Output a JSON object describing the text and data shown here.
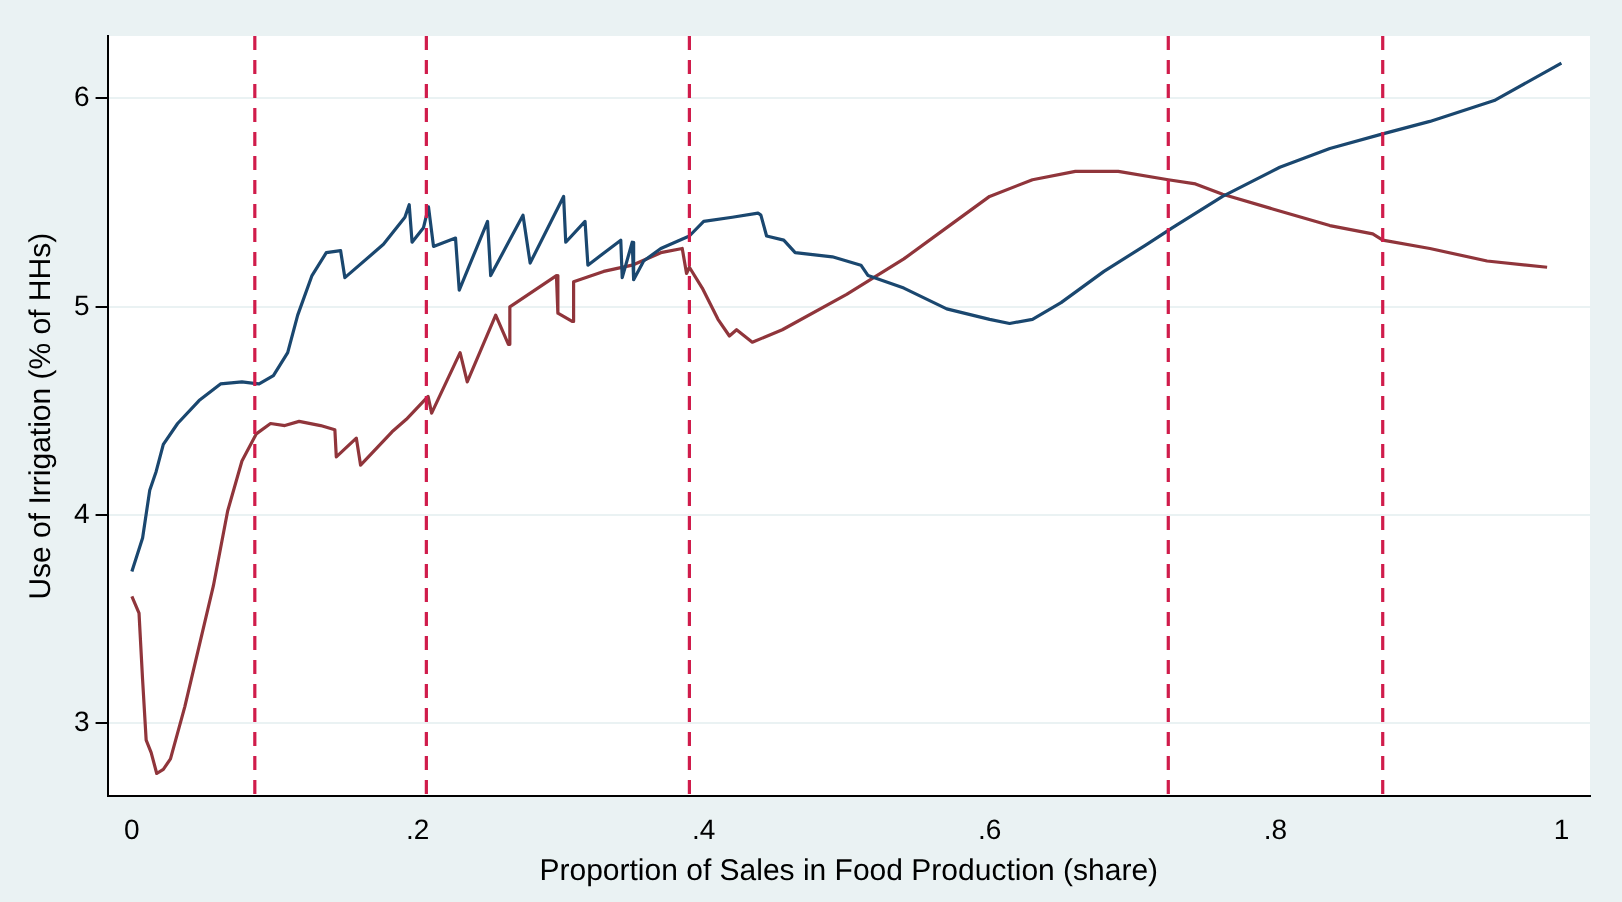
{
  "chart_data": {
    "type": "line",
    "xlabel": "Proportion of Sales in Food Production (share)",
    "ylabel": "Use of Irrigation (% of HHs)",
    "xlim": [
      -0.017,
      1.02
    ],
    "ylim": [
      2.65,
      6.3
    ],
    "xticks": [
      0,
      {
        "value": 0.2,
        "label": ".2"
      },
      {
        "value": 0.4,
        "label": ".4"
      },
      {
        "value": 0.6,
        "label": ".6"
      },
      {
        "value": 0.8,
        "label": ".8"
      },
      1
    ],
    "yticks": [
      3,
      4,
      5,
      6
    ],
    "grid": "y",
    "legend": false,
    "marker": "none",
    "line_style": "solid",
    "series": [
      {
        "color": "#1a476f",
        "x": [
          0,
          0.0075,
          0.0125,
          0.017,
          0.022,
          0.032,
          0.047,
          0.062,
          0.077,
          0.089,
          0.099,
          0.109,
          0.116,
          0.126,
          0.136,
          0.146,
          0.149,
          0.176,
          0.191,
          0.194,
          0.196,
          0.204,
          0.2075,
          0.211,
          0.2264,
          0.229,
          0.2488,
          0.251,
          0.2736,
          0.2786,
          0.302,
          0.3035,
          0.317,
          0.319,
          0.342,
          0.343,
          0.35,
          0.351,
          0.358,
          0.37,
          0.39,
          0.4,
          0.42,
          0.438,
          0.44,
          0.444,
          0.456,
          0.464,
          0.49,
          0.51,
          0.515,
          0.54,
          0.57,
          0.6,
          0.614,
          0.63,
          0.65,
          0.68,
          0.71,
          0.728,
          0.763,
          0.803,
          0.838,
          0.875,
          0.908,
          0.953,
          1.0
        ],
        "values": [
          3.73,
          3.89,
          4.12,
          4.21,
          4.34,
          4.44,
          4.55,
          4.63,
          4.64,
          4.63,
          4.67,
          4.78,
          4.96,
          5.15,
          5.26,
          5.27,
          5.14,
          5.3,
          5.43,
          5.49,
          5.31,
          5.38,
          5.48,
          5.29,
          5.33,
          5.08,
          5.41,
          5.15,
          5.44,
          5.21,
          5.53,
          5.31,
          5.41,
          5.2,
          5.32,
          5.14,
          5.31,
          5.13,
          5.22,
          5.28,
          5.34,
          5.41,
          5.43,
          5.45,
          5.44,
          5.34,
          5.32,
          5.26,
          5.24,
          5.2,
          5.15,
          5.09,
          4.99,
          4.94,
          4.92,
          4.94,
          5.02,
          5.17,
          5.3,
          5.38,
          5.53,
          5.67,
          5.76,
          5.83,
          5.89,
          5.99,
          6.17
        ]
      },
      {
        "color": "#90353b",
        "x": [
          0,
          0.005,
          0.0075,
          0.01,
          0.0135,
          0.0174,
          0.022,
          0.027,
          0.037,
          0.047,
          0.057,
          0.067,
          0.077,
          0.087,
          0.097,
          0.107,
          0.117,
          0.132,
          0.142,
          0.143,
          0.157,
          0.16,
          0.182,
          0.192,
          0.2072,
          0.2097,
          0.2296,
          0.2346,
          0.2545,
          0.2634,
          0.2644,
          0.297,
          0.298,
          0.308,
          0.309,
          0.33,
          0.35,
          0.37,
          0.385,
          0.388,
          0.39,
          0.399,
          0.41,
          0.418,
          0.423,
          0.434,
          0.455,
          0.5,
          0.54,
          0.57,
          0.6,
          0.63,
          0.66,
          0.69,
          0.725,
          0.744,
          0.763,
          0.798,
          0.838,
          0.868,
          0.875,
          0.908,
          0.948,
          0.99
        ],
        "values": [
          3.61,
          3.53,
          3.21,
          2.92,
          2.86,
          2.76,
          2.78,
          2.83,
          3.08,
          3.37,
          3.66,
          4.02,
          4.26,
          4.39,
          4.44,
          4.43,
          4.45,
          4.43,
          4.41,
          4.28,
          4.37,
          4.24,
          4.4,
          4.46,
          4.57,
          4.49,
          4.78,
          4.64,
          4.96,
          4.82,
          5.0,
          5.15,
          4.97,
          4.93,
          5.12,
          5.17,
          5.2,
          5.26,
          5.28,
          5.16,
          5.19,
          5.09,
          4.94,
          4.86,
          4.89,
          4.83,
          4.89,
          5.06,
          5.23,
          5.38,
          5.53,
          5.61,
          5.65,
          5.65,
          5.61,
          5.59,
          5.54,
          5.47,
          5.39,
          5.35,
          5.32,
          5.28,
          5.22,
          5.19
        ]
      }
    ],
    "ref_lines": [
      {
        "axis": "x",
        "value": 0.086,
        "color": "#d01c4b",
        "line_style": "dashed"
      },
      {
        "axis": "x",
        "value": 0.206,
        "color": "#d01c4b",
        "line_style": "dashed"
      },
      {
        "axis": "x",
        "value": 0.39,
        "color": "#d01c4b",
        "line_style": "dashed"
      },
      {
        "axis": "x",
        "value": 0.725,
        "color": "#d01c4b",
        "line_style": "dashed"
      },
      {
        "axis": "x",
        "value": 0.875,
        "color": "#d01c4b",
        "line_style": "dashed"
      }
    ]
  }
}
